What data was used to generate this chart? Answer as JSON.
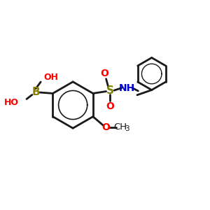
{
  "bg_color": "#ffffff",
  "bond_color": "#1a1a1a",
  "bond_width": 2.0,
  "B_color": "#8B8000",
  "O_color": "#FF0000",
  "N_color": "#0000CC",
  "S_color": "#808000",
  "C_color": "#1a1a1a",
  "figsize": [
    3.0,
    3.0
  ],
  "dpi": 100,
  "xlim": [
    0,
    10
  ],
  "ylim": [
    0,
    10
  ]
}
